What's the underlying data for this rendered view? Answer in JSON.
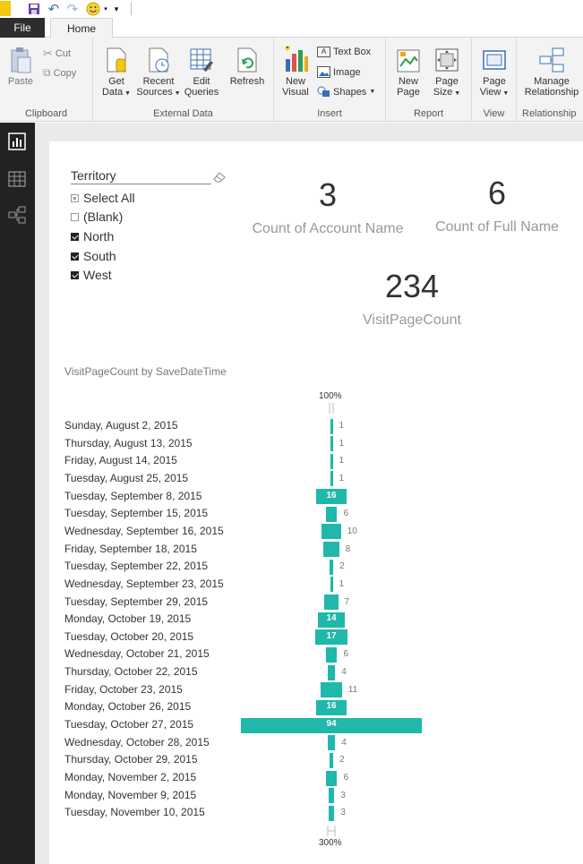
{
  "ribbon": {
    "tabs": {
      "file": "File",
      "home": "Home"
    },
    "groups": {
      "clipboard": {
        "label": "Clipboard",
        "paste": "Paste",
        "cut": "Cut",
        "copy": "Copy"
      },
      "external_data": {
        "label": "External Data",
        "get_data_1": "Get",
        "get_data_2": "Data",
        "recent_sources_1": "Recent",
        "recent_sources_2": "Sources",
        "edit_queries_1": "Edit",
        "edit_queries_2": "Queries",
        "refresh": "Refresh"
      },
      "insert": {
        "label": "Insert",
        "new_visual_1": "New",
        "new_visual_2": "Visual",
        "text_box": "Text Box",
        "image": "Image",
        "shapes": "Shapes"
      },
      "report": {
        "label": "Report",
        "new_page_1": "New",
        "new_page_2": "Page",
        "page_size_1": "Page",
        "page_size_2": "Size"
      },
      "view": {
        "label": "View",
        "page_view_1": "Page",
        "page_view_2": "View"
      },
      "relationships": {
        "label": "Relationship",
        "manage_1": "Manage",
        "manage_2": "Relationship"
      }
    }
  },
  "slicer": {
    "title": "Territory",
    "items": [
      {
        "label": "Select All",
        "state": "partial"
      },
      {
        "label": "(Blank)",
        "state": "unchecked"
      },
      {
        "label": "North",
        "state": "checked"
      },
      {
        "label": "South",
        "state": "checked"
      },
      {
        "label": "West",
        "state": "checked"
      }
    ]
  },
  "cards": [
    {
      "value": "3",
      "label": "Count of Account Name"
    },
    {
      "value": "6",
      "label": "Count of Full Name"
    },
    {
      "value": "234",
      "label": "VisitPageCount"
    }
  ],
  "chart_data": {
    "type": "bar",
    "title": "VisitPageCount by SaveDateTime",
    "axis_top_label": "100%",
    "axis_bottom_label": "300%",
    "color": "#1fb8aa",
    "categories": [
      "Sunday, August 2, 2015",
      "Thursday, August 13, 2015",
      "Friday, August 14, 2015",
      "Tuesday, August 25, 2015",
      "Tuesday, September 8, 2015",
      "Tuesday, September 15, 2015",
      "Wednesday, September 16, 2015",
      "Friday, September 18, 2015",
      "Tuesday, September 22, 2015",
      "Wednesday, September 23, 2015",
      "Tuesday, September 29, 2015",
      "Monday, October 19, 2015",
      "Tuesday, October 20, 2015",
      "Wednesday, October 21, 2015",
      "Thursday, October 22, 2015",
      "Friday, October 23, 2015",
      "Monday, October 26, 2015",
      "Tuesday, October 27, 2015",
      "Wednesday, October 28, 2015",
      "Thursday, October 29, 2015",
      "Monday, November 2, 2015",
      "Monday, November 9, 2015",
      "Tuesday, November 10, 2015"
    ],
    "values": [
      1,
      1,
      1,
      1,
      16,
      6,
      10,
      8,
      2,
      1,
      7,
      14,
      17,
      6,
      4,
      11,
      16,
      94,
      4,
      2,
      6,
      3,
      3
    ],
    "labels": [
      "1",
      "1",
      "1",
      "1",
      "16",
      "6",
      "10",
      "8",
      "2",
      "1",
      "7",
      "14",
      "17",
      "6",
      "4",
      "11",
      "16",
      "94",
      "4",
      "2",
      "6",
      "3",
      "3"
    ]
  }
}
